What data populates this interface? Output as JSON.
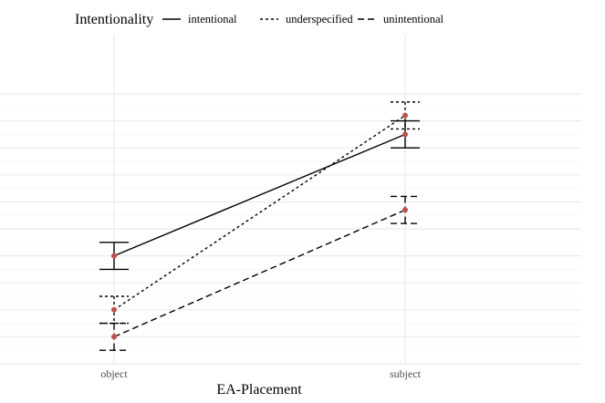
{
  "chart_data": {
    "type": "line",
    "xlabel": "EA-Placement",
    "ylabel": "",
    "categories": [
      "object",
      "subject"
    ],
    "ylim": [
      0,
      10
    ],
    "grid": true,
    "legend": {
      "title": "Intentionality",
      "placement": "top"
    },
    "series": [
      {
        "name": "intentional",
        "linestyle": "solid",
        "values": [
          4.0,
          8.5
        ],
        "error_low": [
          3.5,
          8.0
        ],
        "error_high": [
          4.5,
          9.0
        ]
      },
      {
        "name": "underspecified",
        "linestyle": "dotted",
        "values": [
          2.0,
          9.2
        ],
        "error_low": [
          1.5,
          8.7
        ],
        "error_high": [
          2.5,
          9.7
        ]
      },
      {
        "name": "unintentional",
        "linestyle": "dashed",
        "values": [
          1.0,
          5.7
        ],
        "error_low": [
          0.5,
          5.2
        ],
        "error_high": [
          1.5,
          6.2
        ]
      }
    ],
    "point_color": "#c0504d"
  }
}
